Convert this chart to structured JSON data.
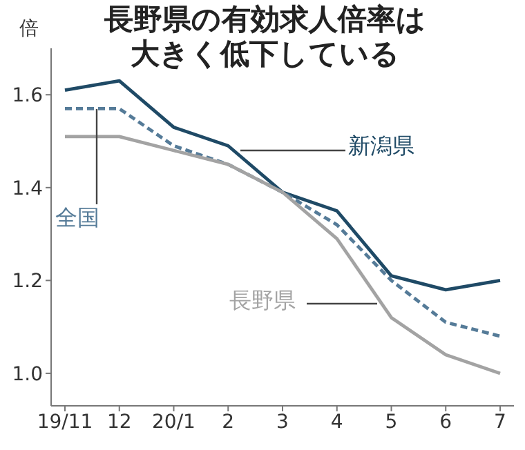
{
  "chart_data": {
    "type": "line",
    "title": "長野県の有効求人倍率は大きく低下している",
    "ylabel": "倍",
    "categories": [
      "19/11",
      "12",
      "20/1",
      "2",
      "3",
      "4",
      "5",
      "6",
      "7"
    ],
    "series": [
      {
        "name": "新潟県",
        "color": "#1f4a66",
        "line_style": "solid",
        "values": [
          1.61,
          1.63,
          1.53,
          1.49,
          1.39,
          1.35,
          1.21,
          1.18,
          1.2
        ]
      },
      {
        "name": "全国",
        "color": "#557b98",
        "line_style": "dashed",
        "values": [
          1.57,
          1.57,
          1.49,
          1.45,
          1.39,
          1.32,
          1.2,
          1.11,
          1.08
        ]
      },
      {
        "name": "長野県",
        "color": "#a3a3a3",
        "line_style": "solid",
        "values": [
          1.51,
          1.51,
          1.48,
          1.45,
          1.39,
          1.29,
          1.12,
          1.04,
          1.0
        ]
      }
    ],
    "ylim": [
      0.93,
      1.7
    ],
    "yticks": [
      {
        "value": 1,
        "label": "1.0"
      },
      {
        "value": 1.2,
        "label": "1.2"
      },
      {
        "value": 1.4,
        "label": "1.4"
      },
      {
        "value": 1.6,
        "label": "1.6"
      }
    ],
    "grid": false,
    "legend": false,
    "marker": "none"
  }
}
